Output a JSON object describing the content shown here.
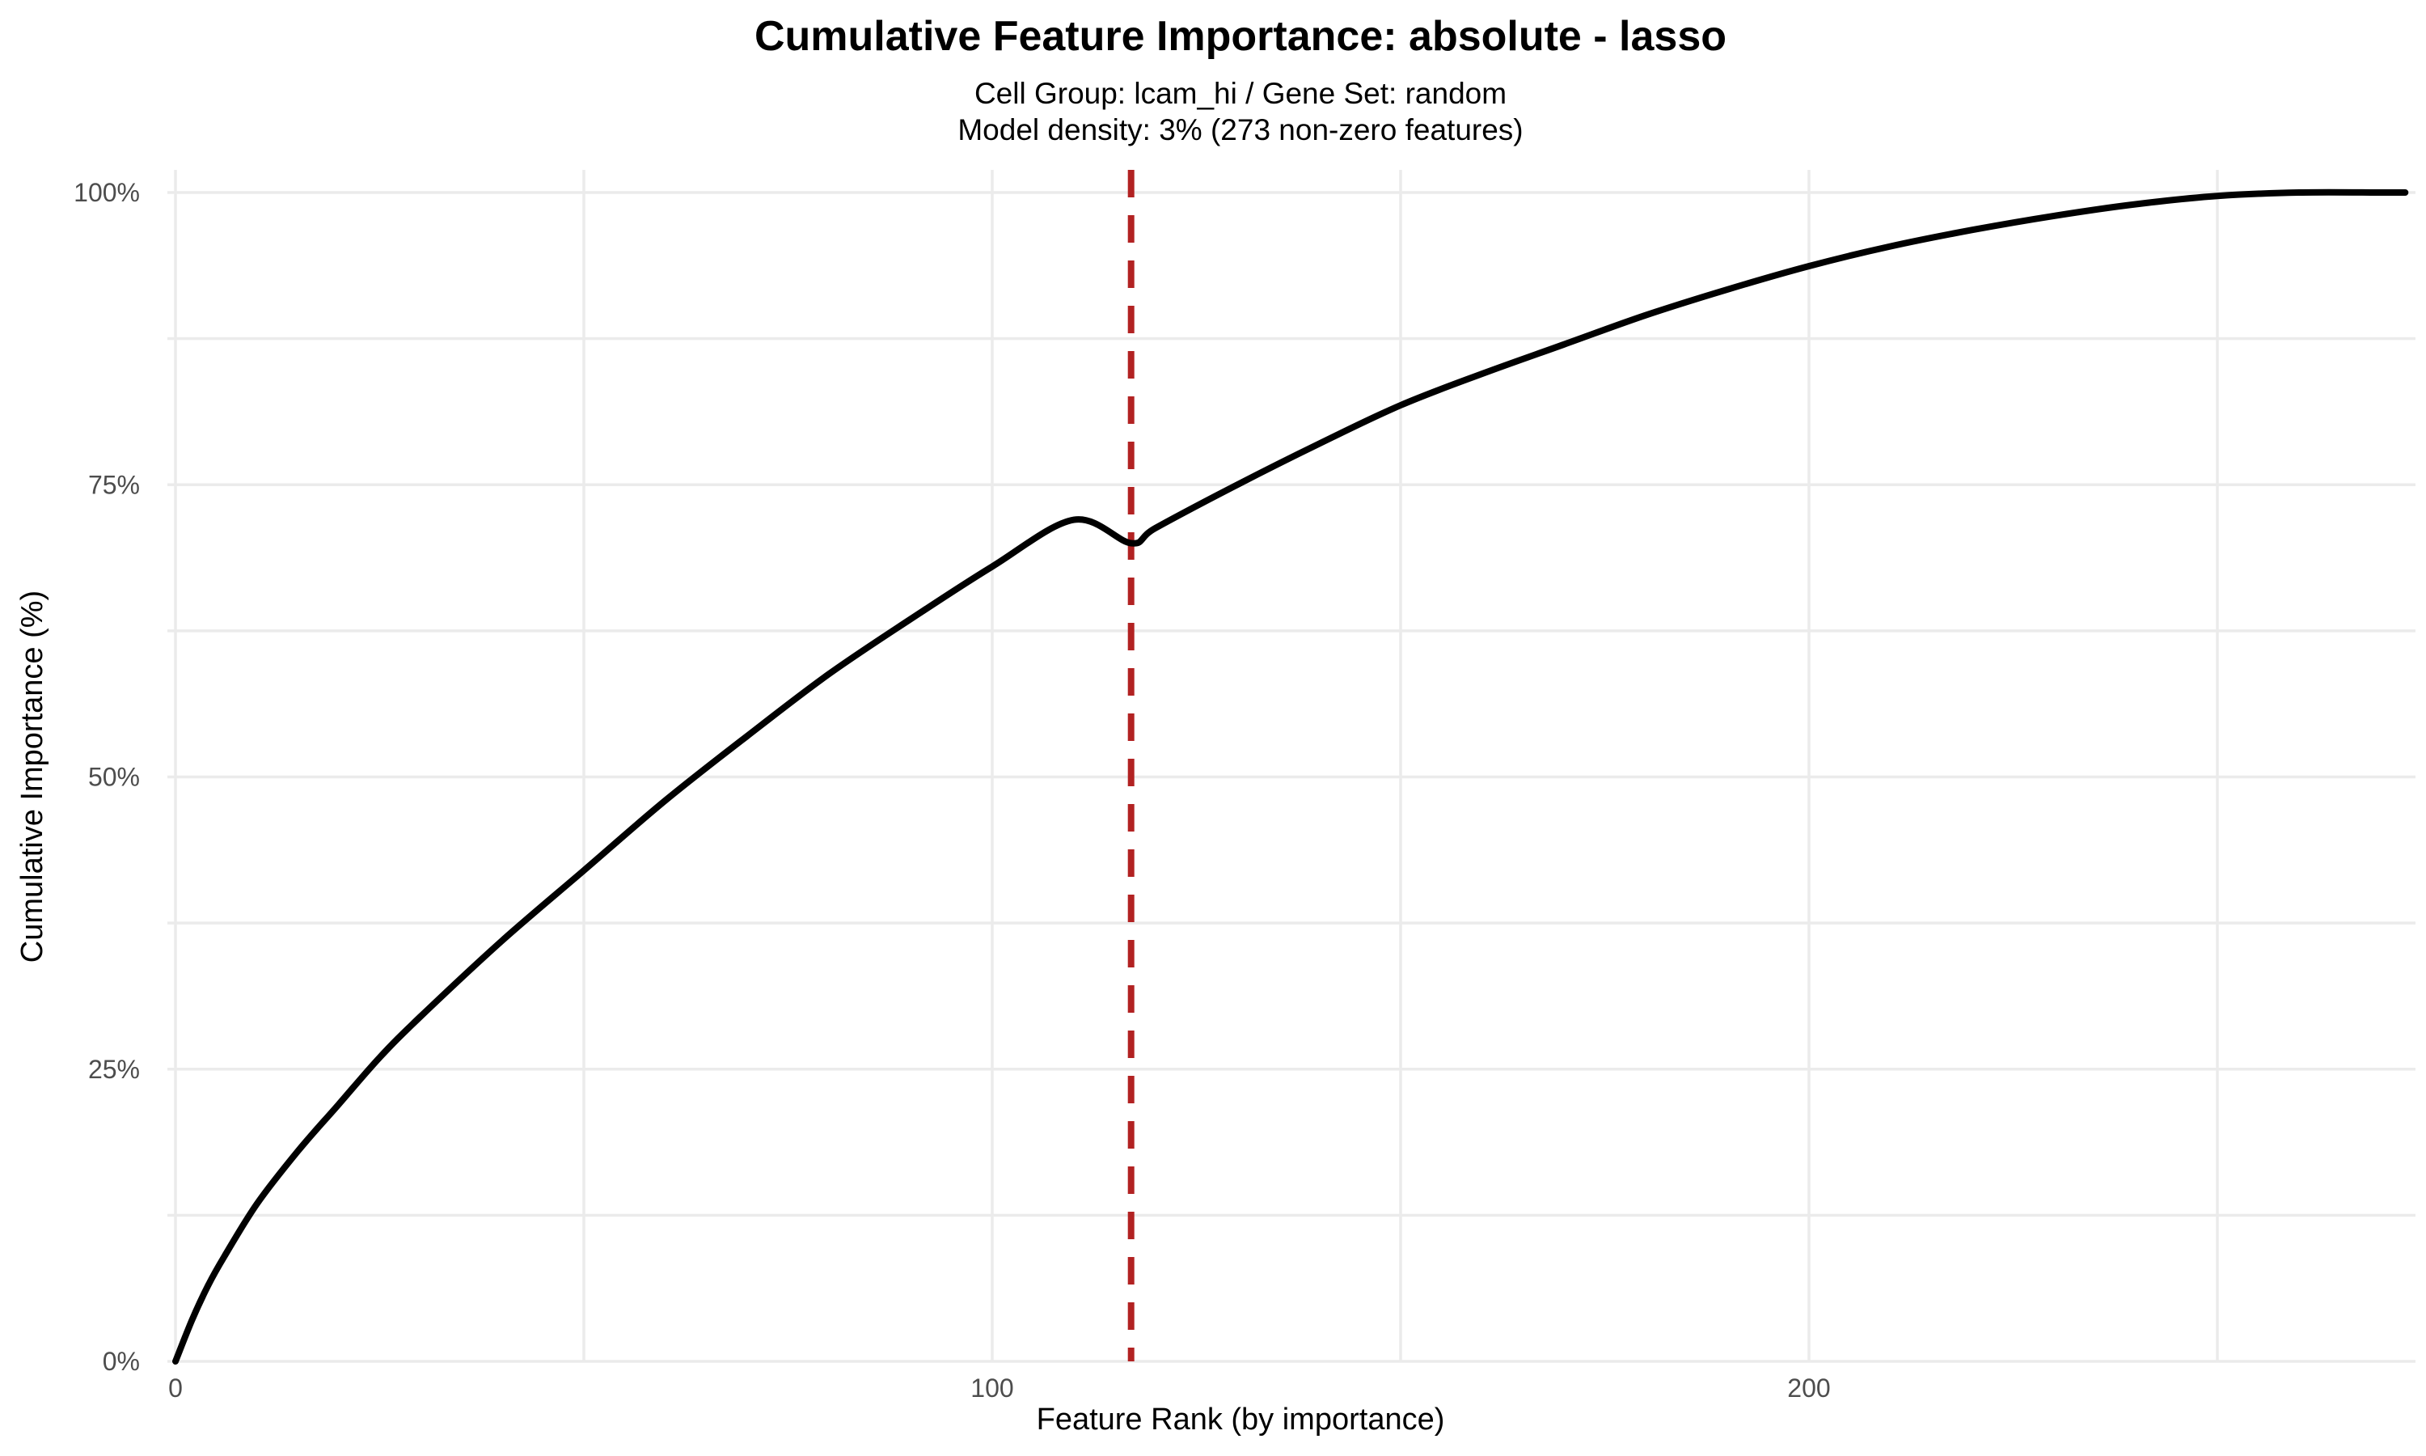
{
  "chart_data": {
    "type": "line",
    "title": "Cumulative Feature Importance: absolute - lasso",
    "subtitle_lines": [
      "Cell Group: lcam_hi / Gene Set: random",
      "Model density: 3% (273 non-zero features)"
    ],
    "xlabel": "Feature Rank (by importance)",
    "ylabel": "Cumulative Importance (%)",
    "xlim": [
      0,
      275
    ],
    "ylim": [
      0,
      100
    ],
    "x_ticks": [
      0,
      100,
      200
    ],
    "x_tick_labels": [
      "0",
      "100",
      "200"
    ],
    "y_ticks": [
      0,
      25,
      50,
      75,
      100
    ],
    "y_tick_labels": [
      "0%",
      "25%",
      "50%",
      "75%",
      "100%"
    ],
    "grid": true,
    "legend": "none",
    "series": [
      {
        "color": "#000000",
        "x": [
          0,
          2,
          4,
          6,
          10,
          15,
          20,
          25,
          30,
          40,
          50,
          60,
          70,
          80,
          90,
          100,
          110,
          117,
          120,
          130,
          140,
          150,
          160,
          170,
          180,
          190,
          200,
          210,
          220,
          230,
          240,
          250,
          260,
          270,
          273
        ],
        "y": [
          0,
          3.5,
          6.5,
          9,
          13.5,
          18,
          22,
          26,
          29.5,
          36,
          42,
          48,
          53.5,
          58.8,
          63.5,
          68,
          72,
          70,
          71.3,
          75,
          78.5,
          81.8,
          84.5,
          87,
          89.5,
          91.7,
          93.7,
          95.4,
          96.8,
          98,
          99,
          99.7,
          100,
          100,
          100
        ]
      }
    ],
    "annotations": [
      {
        "type": "vline",
        "x": 117,
        "color": "#b22222",
        "style": "dashed"
      }
    ]
  }
}
